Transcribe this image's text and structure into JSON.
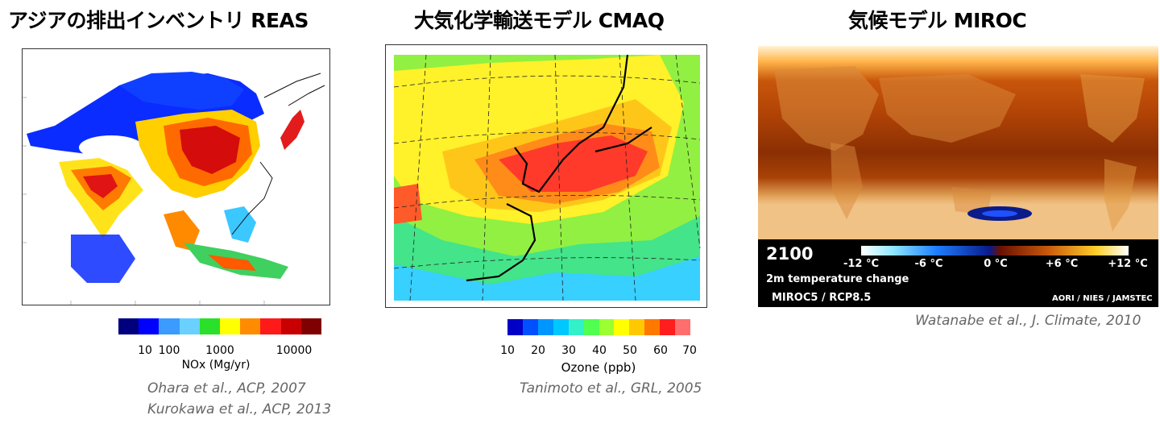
{
  "panels": [
    {
      "title": "アジアの排出インベントリ REAS",
      "colorbar": {
        "colors": [
          "#00007f",
          "#0000ff",
          "#3b9bff",
          "#6ad0ff",
          "#2ae02a",
          "#ffff00",
          "#ff8c00",
          "#ff1a1a",
          "#c80000",
          "#7f0000"
        ],
        "ticks": [
          "10",
          "100",
          "1000",
          "10000"
        ],
        "unit": "NOx (Mg/yr)"
      },
      "citations": [
        "Ohara et al., ACP, 2007",
        "Kurokawa et al., ACP, 2013"
      ]
    },
    {
      "title": "大気化学輸送モデル CMAQ",
      "colorbar": {
        "colors": [
          "#0000c8",
          "#0050ff",
          "#0096ff",
          "#00c8ff",
          "#32f0c8",
          "#50ff50",
          "#9bff32",
          "#ffff00",
          "#ffc800",
          "#ff7800",
          "#ff1e1e",
          "#ff6e6e"
        ],
        "ticks": [
          "10",
          "20",
          "30",
          "40",
          "50",
          "60",
          "70"
        ],
        "unit": "Ozone (ppb)"
      },
      "citations": [
        "Tanimoto et al., GRL, 2005"
      ]
    },
    {
      "title": "気候モデル MIROC",
      "overlay": {
        "year": "2100",
        "variable": "2m temperature change",
        "scenario": "MIROC5 / RCP8.5",
        "credit": "AORI / NIES / JAMSTEC",
        "ticks": [
          "-12 °C",
          "-6 °C",
          "0 °C",
          "+6 °C",
          "+12 °C"
        ]
      },
      "citations": [
        "Watanabe et al., J. Climate, 2010"
      ]
    }
  ]
}
